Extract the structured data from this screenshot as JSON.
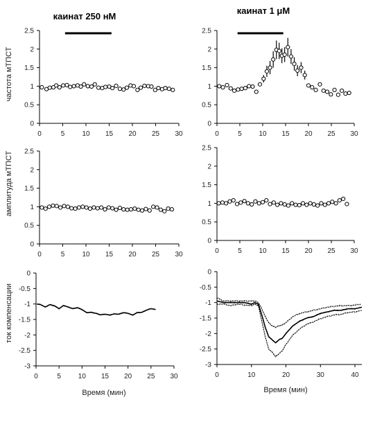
{
  "columns": [
    {
      "title": "каинат 250 нМ"
    },
    {
      "title": "каинат 1 μМ"
    }
  ],
  "row_labels": [
    "частота мТПСТ",
    "амплитуда мТПСТ",
    "ток компенсации"
  ],
  "xlabel": "Время (мин)",
  "chart_data": [
    {
      "id": "freq_250",
      "type": "scatter",
      "row": 0,
      "col": 0,
      "ylabel": "частота мТПСТ",
      "xlim": [
        0,
        30
      ],
      "ylim": [
        0,
        2.5
      ],
      "xticks": [
        0,
        5,
        10,
        15,
        20,
        25,
        30
      ],
      "yticks": [
        0,
        0.5,
        1,
        1.5,
        2,
        2.5
      ],
      "ytick_labels": [
        "0",
        "0.5",
        "1",
        "1.5",
        "2",
        "2.5"
      ],
      "bar": [
        5.5,
        15.5
      ],
      "series": [
        {
          "marker": "circle",
          "x": [
            0.5,
            1.5,
            2.2,
            3,
            3.6,
            4.3,
            5.1,
            5.9,
            6.6,
            7.4,
            8.2,
            8.9,
            9.6,
            10.4,
            11.2,
            11.9,
            12.7,
            13.5,
            14.2,
            15,
            15.7,
            16.5,
            17.3,
            18.1,
            18.8,
            19.6,
            20.3,
            21.1,
            21.8,
            22.6,
            23.4,
            24.1,
            24.9,
            25.6,
            26.4,
            27.1,
            27.9,
            28.7
          ],
          "y": [
            0.97,
            0.92,
            0.96,
            0.97,
            1.02,
            0.97,
            1.02,
            1.03,
            0.98,
            1.0,
            1.02,
            0.99,
            1.05,
            1.0,
            0.99,
            1.05,
            0.96,
            0.95,
            0.98,
            0.99,
            0.95,
            1.01,
            0.93,
            0.91,
            0.96,
            1.02,
            1.0,
            0.9,
            0.96,
            1.01,
            1.0,
            0.99,
            0.9,
            0.95,
            0.92,
            0.95,
            0.93,
            0.9
          ]
        }
      ]
    },
    {
      "id": "freq_1uM",
      "type": "scatter",
      "row": 0,
      "col": 1,
      "xlim": [
        0,
        30
      ],
      "ylim": [
        0,
        2.5
      ],
      "xticks": [
        0,
        5,
        10,
        15,
        20,
        25,
        30
      ],
      "yticks": [
        0,
        0.5,
        1,
        1.5,
        2,
        2.5
      ],
      "ytick_labels": [
        "0",
        "0.5",
        "1",
        "1.5",
        "2",
        "2.5"
      ],
      "bar": [
        4.5,
        14.5
      ],
      "series": [
        {
          "marker": "circle",
          "x": [
            0.5,
            1.3,
            2.2,
            3,
            3.8,
            4.6,
            5.4,
            6.2,
            7,
            7.8,
            8.6,
            9.4,
            10.2,
            10.9,
            11.6,
            12.3,
            13,
            13.6,
            14.2,
            14.8,
            15.5,
            16.2,
            16.9,
            17.6,
            18.4,
            19.2,
            20,
            20.8,
            21.6,
            22.5,
            23.3,
            24.1,
            24.9,
            25.7,
            26.5,
            27.3,
            28.1,
            28.9
          ],
          "y": [
            1.0,
            0.97,
            1.03,
            0.94,
            0.88,
            0.91,
            0.93,
            0.95,
            1.0,
            0.99,
            0.85,
            1.05,
            1.2,
            1.4,
            1.5,
            1.72,
            1.98,
            1.95,
            1.82,
            1.85,
            2.05,
            1.8,
            1.6,
            1.42,
            1.5,
            1.3,
            1.02,
            0.97,
            0.9,
            1.05,
            0.88,
            0.85,
            0.78,
            0.9,
            0.77,
            0.88,
            0.8,
            0.82
          ],
          "err": [
            0,
            0,
            0,
            0,
            0,
            0,
            0,
            0,
            0,
            0,
            0,
            0,
            0.1,
            0.15,
            0.18,
            0.22,
            0.25,
            0.22,
            0.2,
            0.2,
            0.25,
            0.2,
            0.18,
            0.15,
            0.15,
            0.12,
            0,
            0,
            0,
            0,
            0,
            0,
            0,
            0,
            0,
            0,
            0,
            0
          ]
        }
      ]
    },
    {
      "id": "amp_250",
      "type": "scatter",
      "row": 1,
      "col": 0,
      "ylabel": "амплитуда мТПСТ",
      "xlim": [
        0,
        30
      ],
      "ylim": [
        0,
        2.5
      ],
      "xticks": [
        0,
        5,
        10,
        15,
        20,
        25,
        30
      ],
      "yticks": [
        0,
        0.5,
        1,
        1.5,
        2,
        2.5
      ],
      "ytick_labels": [
        "0",
        "0.5",
        "1",
        "1.5",
        "2",
        "2.5"
      ],
      "series": [
        {
          "marker": "circle",
          "x": [
            0.5,
            1.3,
            2.1,
            2.9,
            3.7,
            4.5,
            5.3,
            6.1,
            6.9,
            7.7,
            8.5,
            9.3,
            10.1,
            10.9,
            11.7,
            12.5,
            13.3,
            14.1,
            14.9,
            15.7,
            16.5,
            17.3,
            18.1,
            18.9,
            19.7,
            20.5,
            21.3,
            22.1,
            22.9,
            23.7,
            24.5,
            25.3,
            26.1,
            26.9,
            27.7,
            28.5
          ],
          "y": [
            0.98,
            0.95,
            1.0,
            1.03,
            1.02,
            0.98,
            1.02,
            1.0,
            0.96,
            0.95,
            0.98,
            1.0,
            0.98,
            0.95,
            0.98,
            0.96,
            0.98,
            0.93,
            0.98,
            0.96,
            0.92,
            0.97,
            0.93,
            0.92,
            0.93,
            0.95,
            0.92,
            0.9,
            0.94,
            0.9,
            1.0,
            0.98,
            0.92,
            0.88,
            0.95,
            0.93
          ]
        }
      ]
    },
    {
      "id": "amp_1uM",
      "type": "scatter",
      "row": 1,
      "col": 1,
      "xlim": [
        0,
        30
      ],
      "ylim": [
        0,
        2.5
      ],
      "xticks": [
        0,
        5,
        10,
        15,
        20,
        25,
        30
      ],
      "yticks": [
        0,
        0.5,
        1,
        1.5,
        2,
        2.5
      ],
      "ytick_labels": [
        "0",
        "0.5",
        "1",
        "1.5",
        "2",
        "2.5"
      ],
      "series": [
        {
          "marker": "circle",
          "x": [
            0.4,
            1.2,
            2,
            2.8,
            3.6,
            4.4,
            5.2,
            6,
            6.8,
            7.6,
            8.4,
            9.2,
            10,
            10.8,
            11.6,
            12.4,
            13.2,
            14,
            14.8,
            15.6,
            16.4,
            17.2,
            18,
            18.8,
            19.6,
            20.4,
            21.2,
            22,
            22.8,
            23.6,
            24.4,
            25.2,
            26,
            26.8,
            27.6,
            28.4
          ],
          "y": [
            1.0,
            1.02,
            1.0,
            1.05,
            1.08,
            0.98,
            1.02,
            1.06,
            1.0,
            0.97,
            1.05,
            1.0,
            1.03,
            1.08,
            0.98,
            1.02,
            0.96,
            1.0,
            0.97,
            0.94,
            1.0,
            0.96,
            0.95,
            1.0,
            0.96,
            1.0,
            0.97,
            0.94,
            1.0,
            0.96,
            1.0,
            1.04,
            1.0,
            1.08,
            1.12,
            0.98
          ]
        }
      ]
    },
    {
      "id": "cur_250",
      "type": "line",
      "row": 2,
      "col": 0,
      "ylabel": "ток компенсации",
      "xlim": [
        0,
        30
      ],
      "ylim": [
        -3,
        0
      ],
      "xticks": [
        0,
        5,
        10,
        15,
        20,
        25,
        30
      ],
      "yticks": [
        -3,
        -2.5,
        -2,
        -1.5,
        -1,
        -0.5,
        0
      ],
      "ytick_labels": [
        "-3",
        "-2.5",
        "-2",
        "-1.5",
        "-1",
        "-0.5",
        "0"
      ],
      "series": [
        {
          "x": [
            0.2,
            1,
            2,
            3,
            4,
            5,
            6,
            7,
            8,
            9,
            10,
            11,
            12,
            13,
            14,
            15,
            16,
            17,
            18,
            19,
            20,
            21,
            22,
            23,
            24,
            25,
            26
          ],
          "y": [
            -1.0,
            -1.02,
            -1.1,
            -1.02,
            -1.06,
            -1.15,
            -1.05,
            -1.1,
            -1.15,
            -1.12,
            -1.18,
            -1.28,
            -1.27,
            -1.3,
            -1.35,
            -1.33,
            -1.36,
            -1.32,
            -1.33,
            -1.28,
            -1.3,
            -1.36,
            -1.28,
            -1.27,
            -1.2,
            -1.15,
            -1.18
          ]
        }
      ]
    },
    {
      "id": "cur_1uM",
      "type": "line",
      "row": 2,
      "col": 1,
      "xlim": [
        0,
        42
      ],
      "ylim": [
        -3,
        0
      ],
      "xticks": [
        0,
        10,
        20,
        30,
        40
      ],
      "yticks": [
        -3,
        -2.5,
        -2,
        -1.5,
        -1,
        -0.5,
        0
      ],
      "ytick_labels": [
        "-3",
        "-2.5",
        "-2",
        "-1.5",
        "-1",
        "-0.5",
        "0"
      ],
      "series": [
        {
          "style": "solid",
          "x": [
            0,
            2,
            4,
            6,
            8,
            10,
            11,
            12,
            13,
            14,
            15,
            16,
            17,
            18,
            19,
            20,
            22,
            24,
            26,
            28,
            30,
            32,
            34,
            36,
            38,
            40,
            42
          ],
          "y": [
            -0.95,
            -1.0,
            -1.0,
            -1.0,
            -1.0,
            -1.05,
            -1.0,
            -1.05,
            -1.4,
            -1.8,
            -2.1,
            -2.2,
            -2.3,
            -2.2,
            -2.15,
            -2.0,
            -1.75,
            -1.6,
            -1.5,
            -1.45,
            -1.35,
            -1.3,
            -1.25,
            -1.25,
            -1.2,
            -1.2,
            -1.15
          ]
        },
        {
          "style": "dotted",
          "x": [
            0,
            2,
            4,
            6,
            8,
            10,
            11,
            12,
            13,
            14,
            15,
            16,
            17,
            18,
            19,
            20,
            22,
            24,
            26,
            28,
            30,
            32,
            34,
            36,
            38,
            40,
            42
          ],
          "y": [
            -0.85,
            -0.95,
            -0.95,
            -0.95,
            -0.95,
            -0.95,
            -0.95,
            -1.0,
            -1.2,
            -1.45,
            -1.65,
            -1.75,
            -1.8,
            -1.75,
            -1.72,
            -1.65,
            -1.45,
            -1.35,
            -1.3,
            -1.25,
            -1.2,
            -1.15,
            -1.12,
            -1.1,
            -1.1,
            -1.08,
            -1.05
          ]
        },
        {
          "style": "dotted",
          "x": [
            0,
            2,
            4,
            6,
            8,
            10,
            11,
            12,
            13,
            14,
            15,
            16,
            17,
            18,
            19,
            20,
            22,
            24,
            26,
            28,
            30,
            32,
            34,
            36,
            38,
            40,
            42
          ],
          "y": [
            -1.05,
            -1.05,
            -1.1,
            -1.05,
            -1.08,
            -1.1,
            -1.05,
            -1.1,
            -1.6,
            -2.1,
            -2.5,
            -2.6,
            -2.75,
            -2.65,
            -2.55,
            -2.35,
            -2.05,
            -1.85,
            -1.7,
            -1.62,
            -1.52,
            -1.45,
            -1.4,
            -1.38,
            -1.32,
            -1.3,
            -1.25
          ]
        }
      ]
    }
  ]
}
